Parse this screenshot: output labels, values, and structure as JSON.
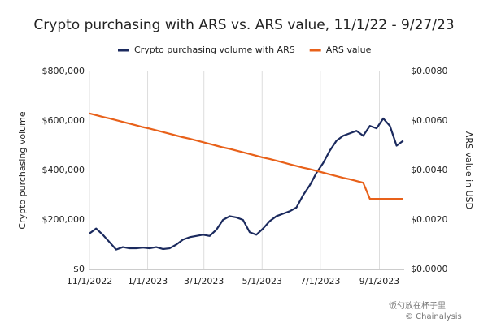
{
  "chart_data": {
    "type": "line",
    "title": "Crypto purchasing with ARS vs. ARS value, 11/1/22 - 9/27/23",
    "y_label": "Crypto purchasing volume",
    "y2_label": "ARS value in USD",
    "annotations": [
      "饭勺放在杯子里",
      "© Chainalysis"
    ],
    "x": [
      "2022-11-01",
      "2022-11-08",
      "2022-11-15",
      "2022-11-22",
      "2022-11-29",
      "2022-12-06",
      "2022-12-13",
      "2022-12-20",
      "2022-12-27",
      "2023-01-03",
      "2023-01-10",
      "2023-01-17",
      "2023-01-24",
      "2023-01-31",
      "2023-02-07",
      "2023-02-14",
      "2023-02-21",
      "2023-02-28",
      "2023-03-07",
      "2023-03-14",
      "2023-03-21",
      "2023-03-28",
      "2023-04-04",
      "2023-04-11",
      "2023-04-18",
      "2023-04-25",
      "2023-05-02",
      "2023-05-09",
      "2023-05-16",
      "2023-05-23",
      "2023-05-30",
      "2023-06-06",
      "2023-06-13",
      "2023-06-20",
      "2023-06-27",
      "2023-07-04",
      "2023-07-11",
      "2023-07-18",
      "2023-07-25",
      "2023-08-01",
      "2023-08-08",
      "2023-08-15",
      "2023-08-22",
      "2023-08-29",
      "2023-09-05",
      "2023-09-12",
      "2023-09-19",
      "2023-09-26"
    ],
    "xlim": [
      "2022-11-01",
      "2023-09-27"
    ],
    "xticks": [
      {
        "value": "2022-11-01",
        "label": "11/1/2022"
      },
      {
        "value": "2023-01-01",
        "label": "1/1/2023"
      },
      {
        "value": "2023-03-01",
        "label": "3/1/2023"
      },
      {
        "value": "2023-05-01",
        "label": "5/1/2023"
      },
      {
        "value": "2023-07-01",
        "label": "7/1/2023"
      },
      {
        "value": "2023-09-01",
        "label": "9/1/2023"
      }
    ],
    "ylim": [
      0,
      800000
    ],
    "yticks": [
      {
        "value": 0,
        "label": "$0"
      },
      {
        "value": 200000,
        "label": "$200,000"
      },
      {
        "value": 400000,
        "label": "$400,000"
      },
      {
        "value": 600000,
        "label": "$600,000"
      },
      {
        "value": 800000,
        "label": "$800,000"
      }
    ],
    "y2lim": [
      0,
      0.008
    ],
    "y2ticks": [
      {
        "value": 0,
        "label": "$0.0000"
      },
      {
        "value": 0.002,
        "label": "$0.0020"
      },
      {
        "value": 0.004,
        "label": "$0.0040"
      },
      {
        "value": 0.006,
        "label": "$0.0060"
      },
      {
        "value": 0.008,
        "label": "$0.0080"
      }
    ],
    "grid": "x",
    "legend": "top",
    "series": [
      {
        "name": "Crypto purchasing volume with ARS",
        "color": "#1b2a5e",
        "values": [
          145000,
          165000,
          140000,
          110000,
          80000,
          90000,
          85000,
          85000,
          88000,
          85000,
          90000,
          82000,
          85000,
          100000,
          120000,
          130000,
          135000,
          140000,
          135000,
          160000,
          200000,
          215000,
          210000,
          200000,
          150000,
          140000,
          165000,
          195000,
          215000,
          225000,
          235000,
          250000,
          300000,
          340000,
          390000,
          430000,
          480000,
          520000,
          540000,
          550000,
          560000,
          540000,
          580000,
          570000,
          610000,
          580000,
          500000,
          520000
        ]
      },
      {
        "name": "ARS value",
        "color": "#e8611a",
        "axis": "y2",
        "values": [
          0.0063,
          0.00623,
          0.00616,
          0.0061,
          0.00603,
          0.00596,
          0.00589,
          0.00582,
          0.00575,
          0.00569,
          0.00562,
          0.00555,
          0.00548,
          0.00541,
          0.00534,
          0.00528,
          0.00521,
          0.00514,
          0.00507,
          0.005,
          0.00493,
          0.00487,
          0.0048,
          0.00473,
          0.00466,
          0.00459,
          0.00452,
          0.00446,
          0.00439,
          0.00432,
          0.00425,
          0.00418,
          0.00411,
          0.00405,
          0.00398,
          0.00391,
          0.00384,
          0.00377,
          0.0037,
          0.00364,
          0.00357,
          0.0035,
          0.00285,
          0.00285,
          0.00285,
          0.00285,
          0.00285,
          0.00285
        ]
      }
    ]
  }
}
